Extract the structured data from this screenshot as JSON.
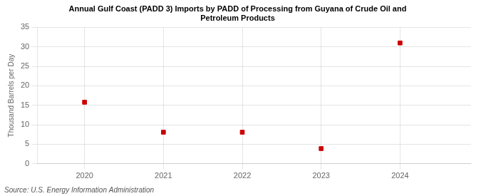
{
  "chart_data": {
    "type": "scatter",
    "title": "Annual Gulf Coast (PADD 3) Imports by PADD of Processing from Guyana of Crude Oil and\nPetroleum Products",
    "ylabel": "Thousand Barrels per Day",
    "source": "Source: U.S. Energy Information Administration",
    "x": [
      2020,
      2021,
      2022,
      2023,
      2024
    ],
    "values": [
      15.8,
      8.1,
      8.1,
      3.9,
      31.0
    ],
    "color": "#cc0000",
    "marker": "square",
    "xlim": [
      2019.4,
      2024.9
    ],
    "xticks": [
      2020,
      2021,
      2022,
      2023,
      2024
    ],
    "ylim": [
      0,
      35
    ],
    "yticks": [
      0,
      5,
      10,
      15,
      20,
      25,
      30,
      35
    ],
    "grid": true
  }
}
